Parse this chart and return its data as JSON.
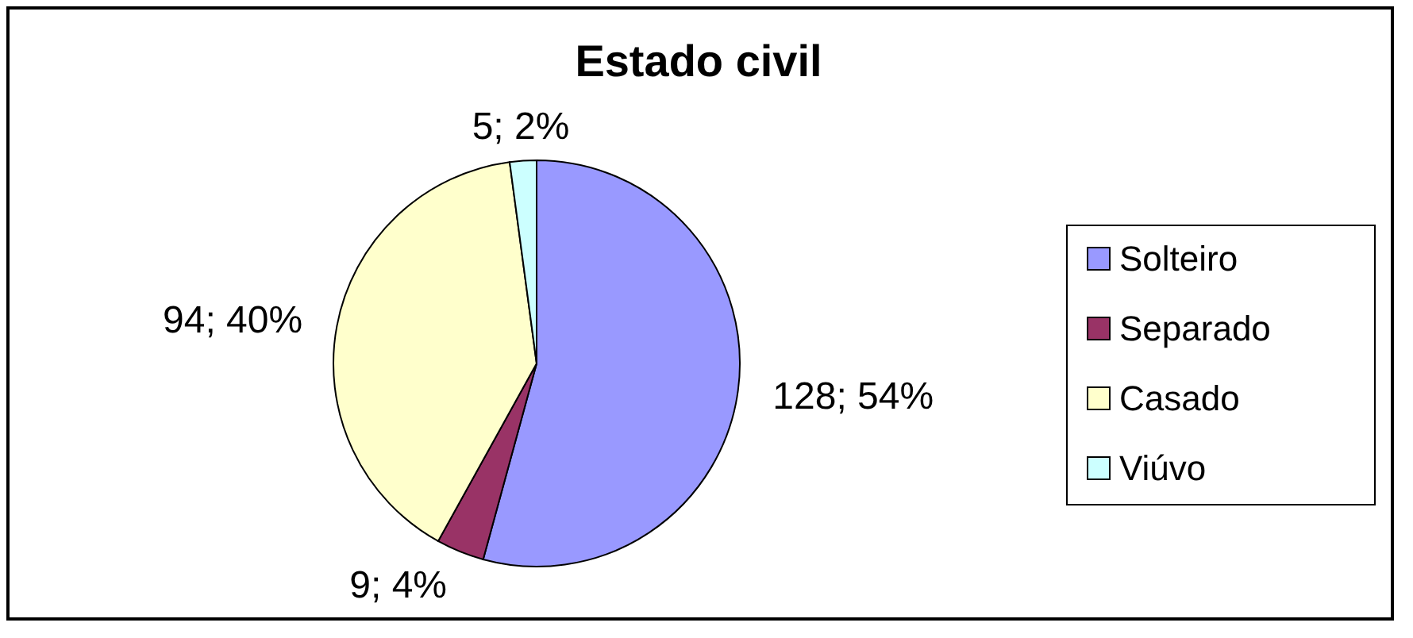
{
  "chart_data": {
    "type": "pie",
    "title": "Estado civil",
    "categories": [
      "Solteiro",
      "Separado",
      "Casado",
      "Viúvo"
    ],
    "values": [
      128,
      9,
      94,
      5
    ],
    "colors": [
      "#9999ff",
      "#993366",
      "#ffffcc",
      "#ccffff"
    ],
    "value_labels": [
      "128; 54%",
      "9; 4%",
      "94; 40%",
      "5; 2%"
    ],
    "legend": "right"
  }
}
